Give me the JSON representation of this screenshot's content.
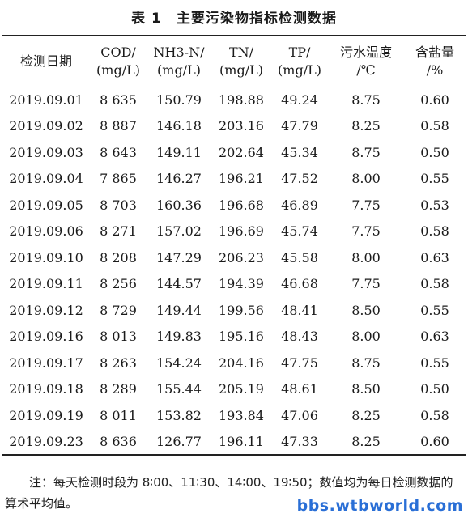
{
  "caption": "表 1　主要污染物指标检测数据",
  "headers": [
    {
      "line1": "检测日期",
      "line2": ""
    },
    {
      "line1": "COD/",
      "line2": "(mg/L)"
    },
    {
      "line1": "NH3-N/",
      "line2": "(mg/L)"
    },
    {
      "line1": "TN/",
      "line2": "(mg/L)"
    },
    {
      "line1": "TP/",
      "line2": "(mg/L)"
    },
    {
      "line1": "污水温度",
      "line2": "/℃"
    },
    {
      "line1": "含盐量",
      "line2": "/%"
    }
  ],
  "rows": [
    [
      "2019.09.01",
      "8 635",
      "150.79",
      "198.88",
      "49.24",
      "8.75",
      "0.60"
    ],
    [
      "2019.09.02",
      "8 887",
      "146.18",
      "203.16",
      "47.79",
      "8.25",
      "0.58"
    ],
    [
      "2019.09.03",
      "8 643",
      "149.11",
      "202.64",
      "45.34",
      "8.75",
      "0.50"
    ],
    [
      "2019.09.04",
      "7 865",
      "146.27",
      "196.21",
      "47.52",
      "8.00",
      "0.55"
    ],
    [
      "2019.09.05",
      "8 703",
      "160.36",
      "196.68",
      "46.89",
      "7.75",
      "0.53"
    ],
    [
      "2019.09.06",
      "8 271",
      "157.02",
      "196.69",
      "45.74",
      "7.75",
      "0.58"
    ],
    [
      "2019.09.10",
      "8 208",
      "147.29",
      "206.23",
      "45.58",
      "8.00",
      "0.63"
    ],
    [
      "2019.09.11",
      "8 256",
      "144.57",
      "194.39",
      "46.68",
      "7.75",
      "0.58"
    ],
    [
      "2019.09.12",
      "8 729",
      "149.44",
      "199.56",
      "48.41",
      "8.50",
      "0.55"
    ],
    [
      "2019.09.16",
      "8 013",
      "149.83",
      "195.16",
      "48.43",
      "8.00",
      "0.63"
    ],
    [
      "2019.09.17",
      "8 263",
      "154.24",
      "204.16",
      "47.75",
      "8.75",
      "0.55"
    ],
    [
      "2019.09.18",
      "8 289",
      "155.44",
      "205.19",
      "48.61",
      "8.50",
      "0.50"
    ],
    [
      "2019.09.19",
      "8 011",
      "153.82",
      "193.84",
      "47.06",
      "8.25",
      "0.58"
    ],
    [
      "2019.09.23",
      "8 636",
      "126.77",
      "196.11",
      "47.33",
      "8.25",
      "0.60"
    ]
  ],
  "note": "注：每天检测时段为 8∶00、11∶30、14∶00、19∶50；数值均为每日检测数据的算术平均值。",
  "watermark": "bbs.wtbworld.com"
}
